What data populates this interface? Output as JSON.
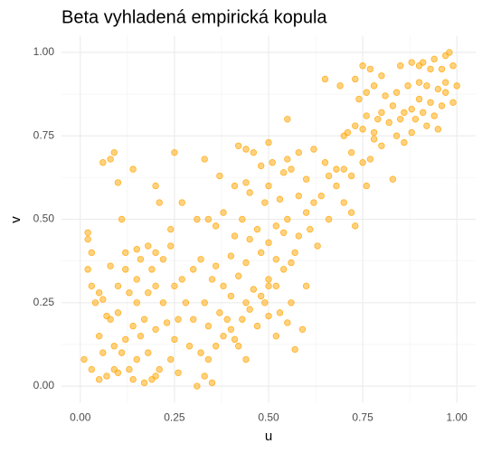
{
  "chart_data": {
    "type": "scatter",
    "title": "Beta vyhladená empirická kopula",
    "x_label": "u",
    "y_label": "v",
    "color": "#FFA500",
    "xlim": [
      -0.05,
      1.05
    ],
    "ylim": [
      -0.05,
      1.05
    ],
    "xticks": [
      {
        "value": 0,
        "label": "0.00"
      },
      {
        "value": 0.25,
        "label": "0.25"
      },
      {
        "value": 0.5,
        "label": "0.50"
      },
      {
        "value": 0.75,
        "label": "0.75"
      },
      {
        "value": 1,
        "label": "1.00"
      }
    ],
    "yticks": [
      {
        "value": 0,
        "label": "0.00"
      },
      {
        "value": 0.25,
        "label": "0.25"
      },
      {
        "value": 0.5,
        "label": "0.50"
      },
      {
        "value": 0.75,
        "label": "0.75"
      },
      {
        "value": 1,
        "label": "1.00"
      }
    ],
    "grid": true,
    "x": [
      0.98,
      0.97,
      0.94,
      0.91,
      0.9,
      0.93,
      0.96,
      0.99,
      0.88,
      0.85,
      0.8,
      0.75,
      0.77,
      0.65,
      0.78,
      0.76,
      0.74,
      0.81,
      0.84,
      0.87,
      0.92,
      0.95,
      0.97,
      1.0,
      0.99,
      0.96,
      0.93,
      0.9,
      0.88,
      0.86,
      0.83,
      0.8,
      0.79,
      0.76,
      0.73,
      0.75,
      0.78,
      0.82,
      0.85,
      0.89,
      0.92,
      0.95,
      0.84,
      0.86,
      0.88,
      0.8,
      0.77,
      0.75,
      0.71,
      0.7,
      0.72,
      0.69,
      0.83,
      0.72,
      0.78,
      0.91,
      0.94,
      0.97,
      0.73,
      0.9,
      0.55,
      0.42,
      0.44,
      0.5,
      0.46,
      0.58,
      0.55,
      0.62,
      0.65,
      0.51,
      0.48,
      0.54,
      0.56,
      0.6,
      0.66,
      0.68,
      0.5,
      0.44,
      0.41,
      0.37,
      0.33,
      0.45,
      0.49,
      0.53,
      0.58,
      0.62,
      0.64,
      0.66,
      0.6,
      0.55,
      0.52,
      0.47,
      0.43,
      0.38,
      0.34,
      0.31,
      0.36,
      0.41,
      0.45,
      0.5,
      0.54,
      0.58,
      0.61,
      0.63,
      0.57,
      0.52,
      0.48,
      0.44,
      0.4,
      0.36,
      0.32,
      0.3,
      0.35,
      0.38,
      0.42,
      0.46,
      0.5,
      0.54,
      0.56,
      0.6,
      0.52,
      0.48,
      0.44,
      0.4,
      0.7,
      0.72,
      0.76,
      0.73,
      0.68,
      0.7,
      0.02,
      0.02,
      0.03,
      0.02,
      0.03,
      0.05,
      0.06,
      0.04,
      0.08,
      0.1,
      0.12,
      0.12,
      0.15,
      0.16,
      0.18,
      0.2,
      0.22,
      0.24,
      0.19,
      0.15,
      0.13,
      0.1,
      0.08,
      0.07,
      0.05,
      0.06,
      0.09,
      0.11,
      0.13,
      0.15,
      0.14,
      0.17,
      0.19,
      0.2,
      0.21,
      0.18,
      0.16,
      0.17,
      0.2,
      0.23,
      0.25,
      0.24,
      0.26,
      0.22,
      0.25,
      0.27,
      0.28,
      0.26,
      0.29,
      0.01,
      0.03,
      0.05,
      0.07,
      0.1,
      0.12,
      0.14,
      0.15,
      0.18,
      0.2,
      0.09,
      0.11,
      0.14,
      0.09,
      0.08,
      0.06,
      0.1,
      0.2,
      0.25,
      0.21,
      0.24,
      0.27,
      0.31,
      0.33,
      0.35,
      0.34,
      0.32,
      0.36,
      0.38,
      0.4,
      0.42,
      0.43,
      0.45,
      0.47,
      0.5,
      0.52,
      0.53,
      0.55,
      0.57,
      0.59,
      0.56,
      0.34,
      0.37,
      0.33,
      0.3,
      0.41,
      0.44,
      0.49,
      0.5,
      0.39
    ],
    "y": [
      1.0,
      0.99,
      0.98,
      0.97,
      0.96,
      0.95,
      0.95,
      0.96,
      0.97,
      0.96,
      0.93,
      0.96,
      0.95,
      0.92,
      0.9,
      0.88,
      0.86,
      0.87,
      0.88,
      0.9,
      0.9,
      0.89,
      0.88,
      0.9,
      0.85,
      0.84,
      0.85,
      0.86,
      0.83,
      0.82,
      0.84,
      0.82,
      0.8,
      0.81,
      0.78,
      0.77,
      0.76,
      0.79,
      0.8,
      0.8,
      0.78,
      0.77,
      0.75,
      0.73,
      0.76,
      0.72,
      0.68,
      0.67,
      0.76,
      0.75,
      0.7,
      0.9,
      0.62,
      0.63,
      0.74,
      0.82,
      0.81,
      0.91,
      0.92,
      0.91,
      0.8,
      0.72,
      0.71,
      0.73,
      0.7,
      0.7,
      0.68,
      0.71,
      0.67,
      0.67,
      0.66,
      0.64,
      0.65,
      0.62,
      0.63,
      0.6,
      0.6,
      0.61,
      0.6,
      0.63,
      0.68,
      0.58,
      0.55,
      0.56,
      0.57,
      0.55,
      0.57,
      0.5,
      0.52,
      0.5,
      0.48,
      0.47,
      0.5,
      0.52,
      0.5,
      0.5,
      0.48,
      0.45,
      0.44,
      0.43,
      0.46,
      0.45,
      0.47,
      0.42,
      0.4,
      0.38,
      0.4,
      0.37,
      0.39,
      0.36,
      0.38,
      0.35,
      0.32,
      0.3,
      0.33,
      0.29,
      0.32,
      0.35,
      0.37,
      0.3,
      0.3,
      0.27,
      0.25,
      0.27,
      0.55,
      0.52,
      0.6,
      0.48,
      0.65,
      0.65,
      0.46,
      0.44,
      0.4,
      0.35,
      0.3,
      0.28,
      0.26,
      0.25,
      0.36,
      0.3,
      0.35,
      0.4,
      0.41,
      0.38,
      0.42,
      0.4,
      0.38,
      0.42,
      0.35,
      0.32,
      0.28,
      0.22,
      0.2,
      0.21,
      0.15,
      0.1,
      0.12,
      0.1,
      0.05,
      0.08,
      0.02,
      0.01,
      0.02,
      0.03,
      0.05,
      0.1,
      0.15,
      0.2,
      0.17,
      0.19,
      0.14,
      0.08,
      0.04,
      0.25,
      0.3,
      0.32,
      0.25,
      0.2,
      0.12,
      0.08,
      0.05,
      0.02,
      0.03,
      0.04,
      0.14,
      0.18,
      0.25,
      0.28,
      0.3,
      0.05,
      0.5,
      0.65,
      0.7,
      0.68,
      0.67,
      0.61,
      0.6,
      0.7,
      0.55,
      0.47,
      0.55,
      0.0,
      0.03,
      0.01,
      0.08,
      0.1,
      0.12,
      0.15,
      0.17,
      0.12,
      0.2,
      0.23,
      0.18,
      0.21,
      0.15,
      0.22,
      0.19,
      0.11,
      0.17,
      0.25,
      0.18,
      0.22,
      0.25,
      0.2,
      0.14,
      0.08,
      0.25,
      0.3,
      0.2
    ]
  }
}
